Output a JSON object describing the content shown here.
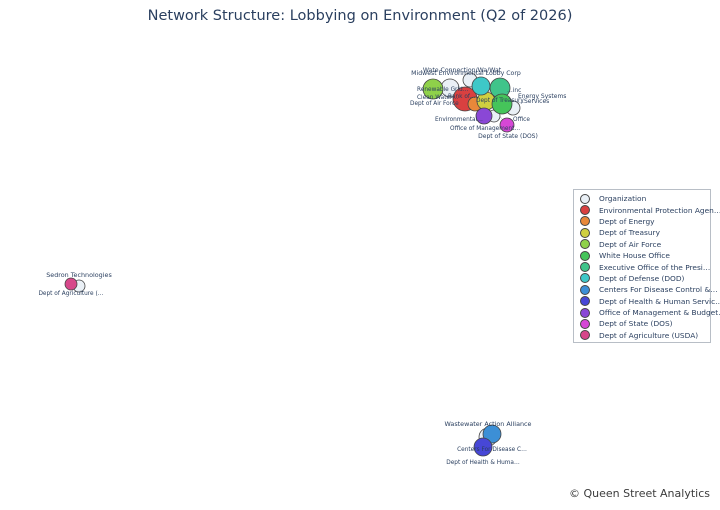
{
  "title": "Network Structure: Lobbying on Environment (Q2 of 2026)",
  "credit": "© Queen Street Analytics",
  "legend": [
    {
      "label": "Organization",
      "color": "#eaf0f6"
    },
    {
      "label": "Environmental Protection Agen…",
      "color": "#d94040"
    },
    {
      "label": "Dept of Energy",
      "color": "#e8883a"
    },
    {
      "label": "Dept of Treasury",
      "color": "#cfcf40"
    },
    {
      "label": "Dept of Air Force",
      "color": "#8fd14a"
    },
    {
      "label": "White House Office",
      "color": "#45c45a"
    },
    {
      "label": "Executive Office of the Presi…",
      "color": "#40c48a"
    },
    {
      "label": "Dept of Defense (DOD)",
      "color": "#3ec8c8"
    },
    {
      "label": "Centers For Disease Control &…",
      "color": "#3c8fd6"
    },
    {
      "label": "Dept of Health & Human Servic…",
      "color": "#4747d6"
    },
    {
      "label": "Office of Management & Budget…",
      "color": "#8a47d6"
    },
    {
      "label": "Dept of State (DOS)",
      "color": "#d647d6"
    },
    {
      "label": "Dept of Agriculture (USDA)",
      "color": "#d6478a"
    }
  ],
  "clusters": [
    {
      "name": "environment-cluster",
      "labels": [
        "Wate Connection/Wa/Wat",
        "Midwest Environmental Lobby Corp",
        "Renewable Grid…",
        "Clean Water…",
        "Dept of Air Force",
        "Rank of…",
        "Dept of Treasury",
        "…inc",
        "Energy Systems",
        "…Services",
        "Environmental…",
        "Office",
        "Office of Management…",
        "Dept of State (DOS)"
      ]
    },
    {
      "name": "agriculture-cluster",
      "labels": [
        "Sedron Technologies",
        "Dept of Agriculture (…"
      ]
    },
    {
      "name": "health-cluster",
      "labels": [
        "Wastewater Action Alliance",
        "Centers For Disease C…",
        "Dept of Health & Huma…"
      ]
    }
  ]
}
